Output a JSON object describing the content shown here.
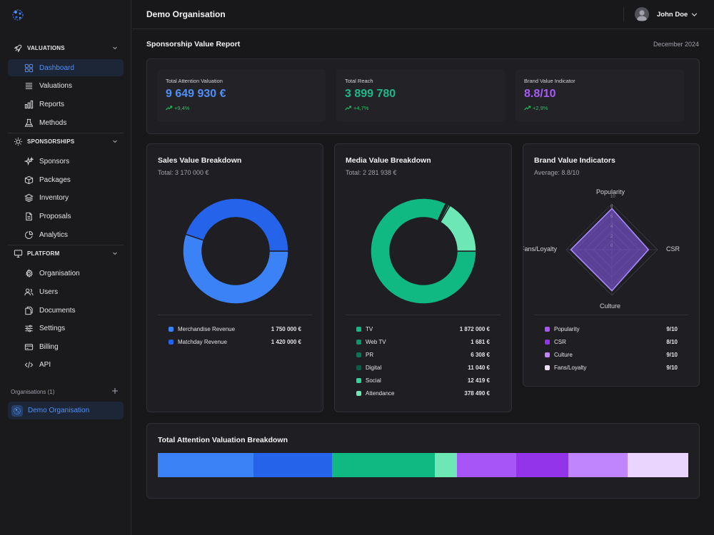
{
  "sidebar": {
    "sections": [
      {
        "label": "VALUATIONS",
        "icon": "rocket-icon"
      },
      {
        "label": "SPONSORSHIPS",
        "icon": "sun-icon"
      },
      {
        "label": "PLATFORM",
        "icon": "monitor-icon"
      }
    ],
    "items": [
      {
        "label": "Dashboard",
        "icon": "grid-icon",
        "active": true
      },
      {
        "label": "Valuations",
        "icon": "list-icon"
      },
      {
        "label": "Reports",
        "icon": "bar-chart-icon"
      },
      {
        "label": "Methods",
        "icon": "flask-icon"
      },
      {
        "label": "Sponsors",
        "icon": "sparkles-icon"
      },
      {
        "label": "Packages",
        "icon": "box-icon"
      },
      {
        "label": "Inventory",
        "icon": "layers-icon"
      },
      {
        "label": "Proposals",
        "icon": "file-icon"
      },
      {
        "label": "Analytics",
        "icon": "pie-chart-icon"
      },
      {
        "label": "Organisation",
        "icon": "gear-icon"
      },
      {
        "label": "Users",
        "icon": "users-icon"
      },
      {
        "label": "Documents",
        "icon": "documents-icon"
      },
      {
        "label": "Settings",
        "icon": "sliders-icon"
      },
      {
        "label": "Billing",
        "icon": "credit-card-icon"
      },
      {
        "label": "API",
        "icon": "code-icon"
      }
    ],
    "orgs_label": "Organisations (1)",
    "org_name": "Demo Organisation"
  },
  "header": {
    "title": "Demo Organisation",
    "user_name": "John Doe"
  },
  "report": {
    "title": "Sponsorship Value Report",
    "date": "December 2024"
  },
  "kpis": [
    {
      "label": "Total Attention Valuation",
      "value": "9 649 930 €",
      "change": "+9,4%",
      "color": "#4f8ff7"
    },
    {
      "label": "Total Reach",
      "value": "3 899 780",
      "change": "+4,7%",
      "color": "#1fb886"
    },
    {
      "label": "Brand Value Indicator",
      "value": "8.8/10",
      "change": "+2,9%",
      "color": "#a85af5"
    }
  ],
  "sales": {
    "title": "Sales Value Breakdown",
    "total": "Total: 3 170 000 €",
    "items": [
      {
        "label": "Merchandise Revenue",
        "value": "1 750 000 €",
        "amount": 1750000,
        "color": "#3b82f6"
      },
      {
        "label": "Matchday Revenue",
        "value": "1 420 000 €",
        "amount": 1420000,
        "color": "#2563eb"
      }
    ]
  },
  "media": {
    "title": "Media Value Breakdown",
    "total": "Total: 2 281 938 €",
    "items": [
      {
        "label": "TV",
        "value": "1 872 000 €",
        "amount": 1872000,
        "color": "#10b981"
      },
      {
        "label": "Web TV",
        "value": "1 681 €",
        "amount": 1681,
        "color": "#059669"
      },
      {
        "label": "PR",
        "value": "6 308 €",
        "amount": 6308,
        "color": "#047857"
      },
      {
        "label": "Digital",
        "value": "11 040 €",
        "amount": 11040,
        "color": "#065f46"
      },
      {
        "label": "Social",
        "value": "12 419 €",
        "amount": 12419,
        "color": "#34d399"
      },
      {
        "label": "Attendance",
        "value": "378 490 €",
        "amount": 378490,
        "color": "#6ee7b7"
      }
    ]
  },
  "brand": {
    "title": "Brand Value Indicators",
    "average": "Average: 8.8/10",
    "items": [
      {
        "label": "Popularity",
        "value": "9/10",
        "score": 9,
        "color": "#a855f7"
      },
      {
        "label": "CSR",
        "value": "8/10",
        "score": 8,
        "color": "#9333ea"
      },
      {
        "label": "Culture",
        "value": "9/10",
        "score": 9,
        "color": "#c084fc"
      },
      {
        "label": "Fans/Loyalty",
        "value": "9/10",
        "score": 9,
        "color": "#ede0fe"
      }
    ],
    "axis_labels": [
      "Popularity",
      "CSR",
      "Culture",
      "Fans/Loyalty"
    ],
    "ticks": [
      "0",
      "2",
      "4",
      "6",
      "8",
      "10"
    ],
    "max": 10
  },
  "tav": {
    "title": "Total Attention Valuation Breakdown",
    "segments": [
      {
        "share": 0.181,
        "color": "#3b82f6"
      },
      {
        "share": 0.147,
        "color": "#2563eb"
      },
      {
        "share": 0.194,
        "color": "#10b981"
      },
      {
        "share": 0.042,
        "color": "#6ee7b7"
      },
      {
        "share": 0.112,
        "color": "#a855f7"
      },
      {
        "share": 0.098,
        "color": "#9333ea"
      },
      {
        "share": 0.112,
        "color": "#c084fc"
      },
      {
        "share": 0.114,
        "color": "#e9d5ff"
      }
    ]
  }
}
